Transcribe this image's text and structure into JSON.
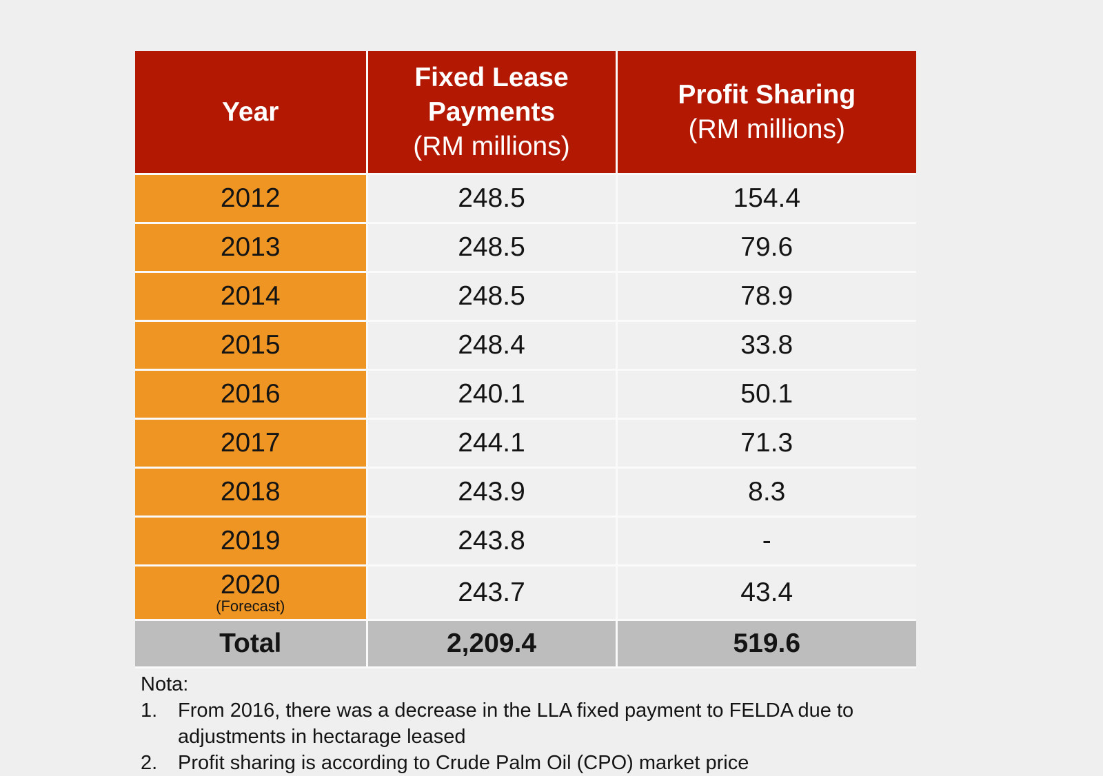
{
  "table": {
    "headers": [
      {
        "title": "Year",
        "unit": ""
      },
      {
        "title": "Fixed Lease Payments",
        "unit": "(RM millions)"
      },
      {
        "title": "Profit Sharing",
        "unit": "(RM millions)"
      }
    ],
    "rows": [
      {
        "year": "2012",
        "note": "",
        "fixed": "248.5",
        "profit": "154.4"
      },
      {
        "year": "2013",
        "note": "",
        "fixed": "248.5",
        "profit": "79.6"
      },
      {
        "year": "2014",
        "note": "",
        "fixed": "248.5",
        "profit": "78.9"
      },
      {
        "year": "2015",
        "note": "",
        "fixed": "248.4",
        "profit": "33.8"
      },
      {
        "year": "2016",
        "note": "",
        "fixed": "240.1",
        "profit": "50.1"
      },
      {
        "year": "2017",
        "note": "",
        "fixed": "244.1",
        "profit": "71.3"
      },
      {
        "year": "2018",
        "note": "",
        "fixed": "243.9",
        "profit": "8.3"
      },
      {
        "year": "2019",
        "note": "",
        "fixed": "243.8",
        "profit": "-"
      },
      {
        "year": "2020",
        "note": "(Forecast)",
        "fixed": "243.7",
        "profit": "43.4"
      }
    ],
    "total": {
      "label": "Total",
      "fixed": "2,209.4",
      "profit": "519.6"
    }
  },
  "notes": {
    "title": "Nota:",
    "items": [
      {
        "num": "1.",
        "text": "From 2016, there was a decrease in the LLA fixed payment to FELDA due to adjustments in hectarage leased"
      },
      {
        "num": "2.",
        "text": "Profit sharing is according to Crude Palm Oil (CPO) market price"
      }
    ]
  },
  "colors": {
    "header_bg": "#b31803",
    "year_col_bg": "#ee9524",
    "total_row_bg": "#bdbdbd",
    "cell_bg": "#f0f0f0"
  }
}
